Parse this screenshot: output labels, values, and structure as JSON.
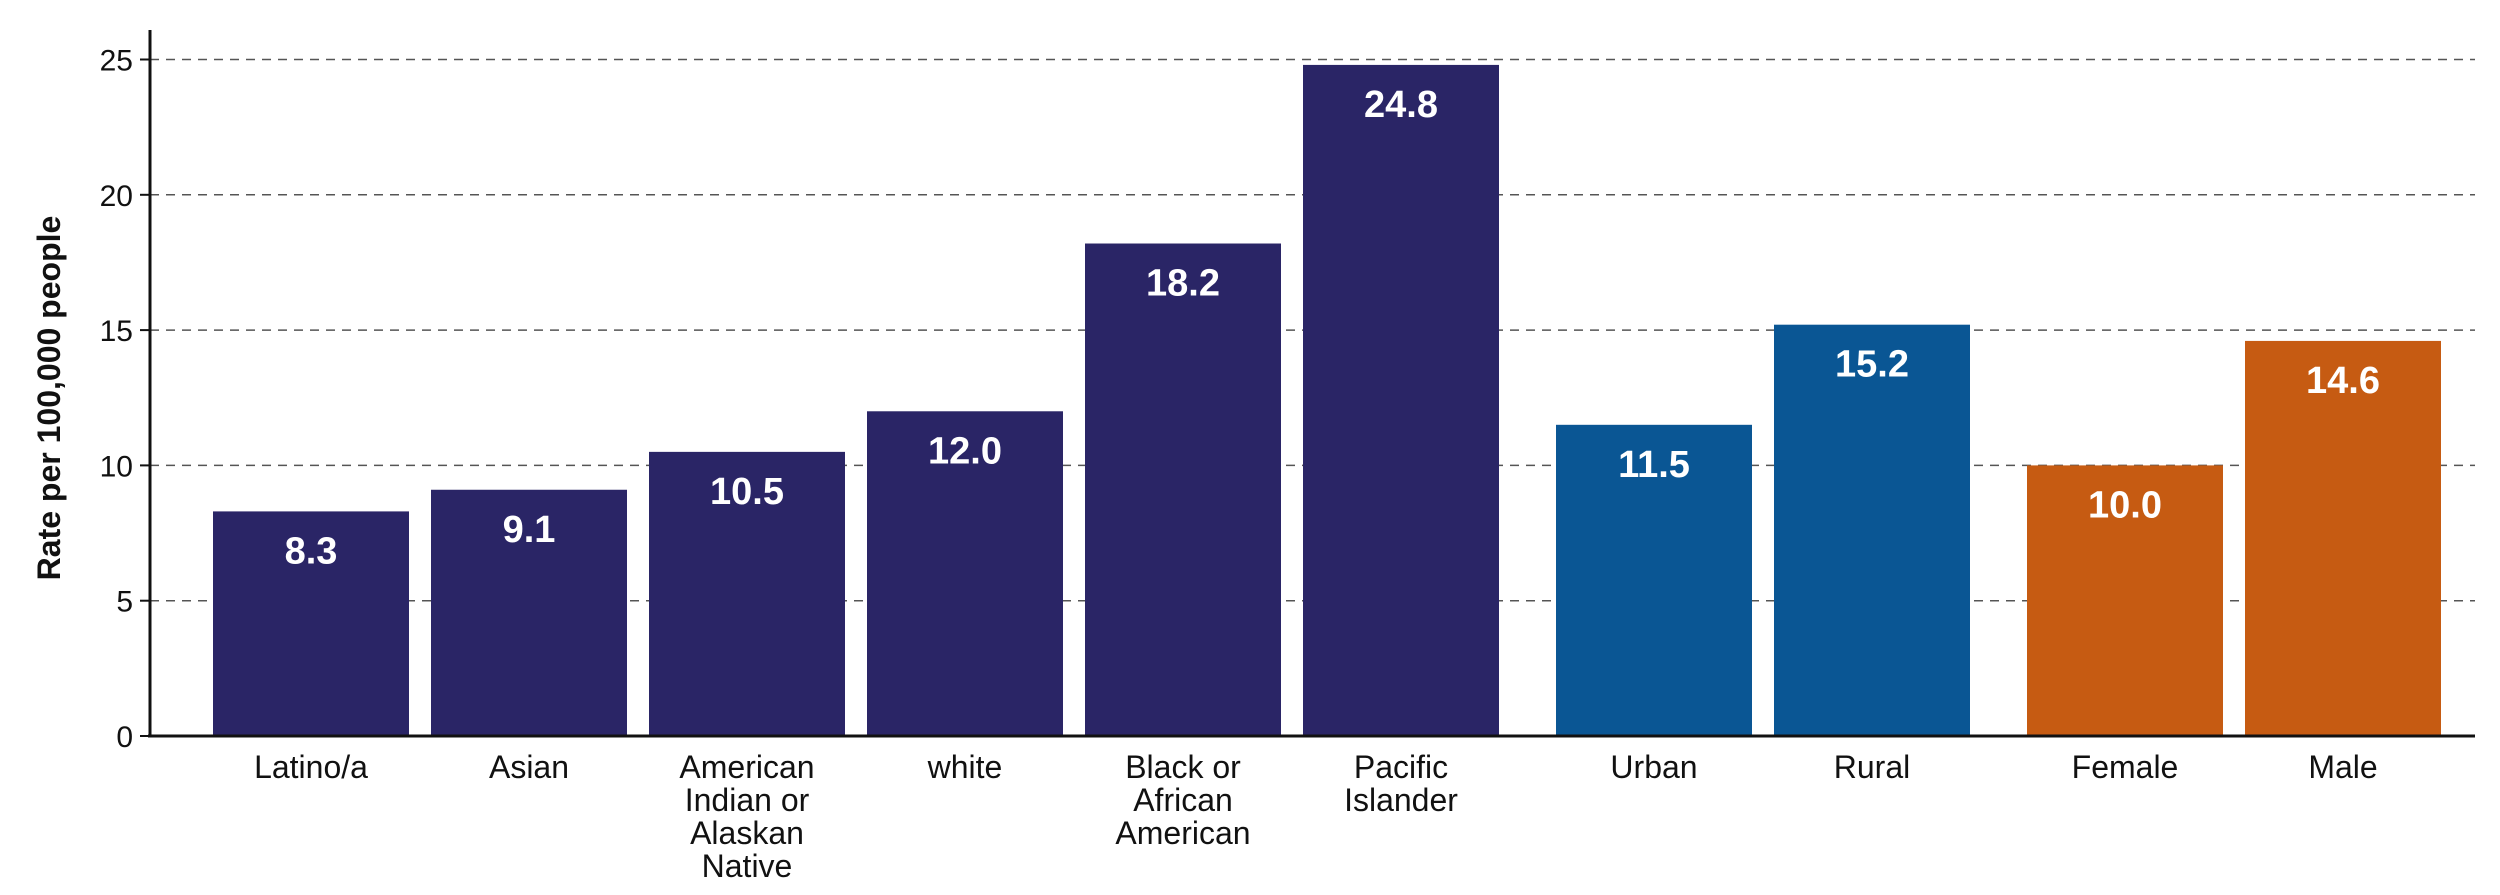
{
  "chart_data": {
    "type": "bar",
    "title": "",
    "xlabel": "",
    "ylabel": "Rate per 100,000 people",
    "ylim": [
      0,
      26
    ],
    "yticks": [
      0,
      5,
      10,
      15,
      20,
      25
    ],
    "grid": "horizontal-dashed",
    "categories": [
      "Latino/a",
      "Asian",
      "American Indian or Alaskan Native",
      "white",
      "Black or African American",
      "Pacific Islander",
      "Urban",
      "Rural",
      "Female",
      "Male"
    ],
    "category_lines": [
      [
        "Latino/a"
      ],
      [
        "Asian"
      ],
      [
        "American",
        "Indian or",
        "Alaskan",
        "Native"
      ],
      [
        "white"
      ],
      [
        "Black or",
        "African",
        "American"
      ],
      [
        "Pacific",
        "Islander"
      ],
      [
        "Urban"
      ],
      [
        "Rural"
      ],
      [
        "Female"
      ],
      [
        "Male"
      ]
    ],
    "values": [
      8.3,
      9.1,
      10.5,
      12.0,
      18.2,
      24.8,
      11.5,
      15.2,
      10.0,
      14.6
    ],
    "value_labels": [
      "8.3",
      "9.1",
      "10.5",
      "12.0",
      "18.2",
      "24.8",
      "11.5",
      "15.2",
      "10.0",
      "14.6"
    ],
    "groups": [
      0,
      0,
      0,
      0,
      0,
      0,
      1,
      1,
      2,
      2
    ],
    "colors": [
      "#2a2566",
      "#0a5694",
      "#c65b12"
    ]
  }
}
